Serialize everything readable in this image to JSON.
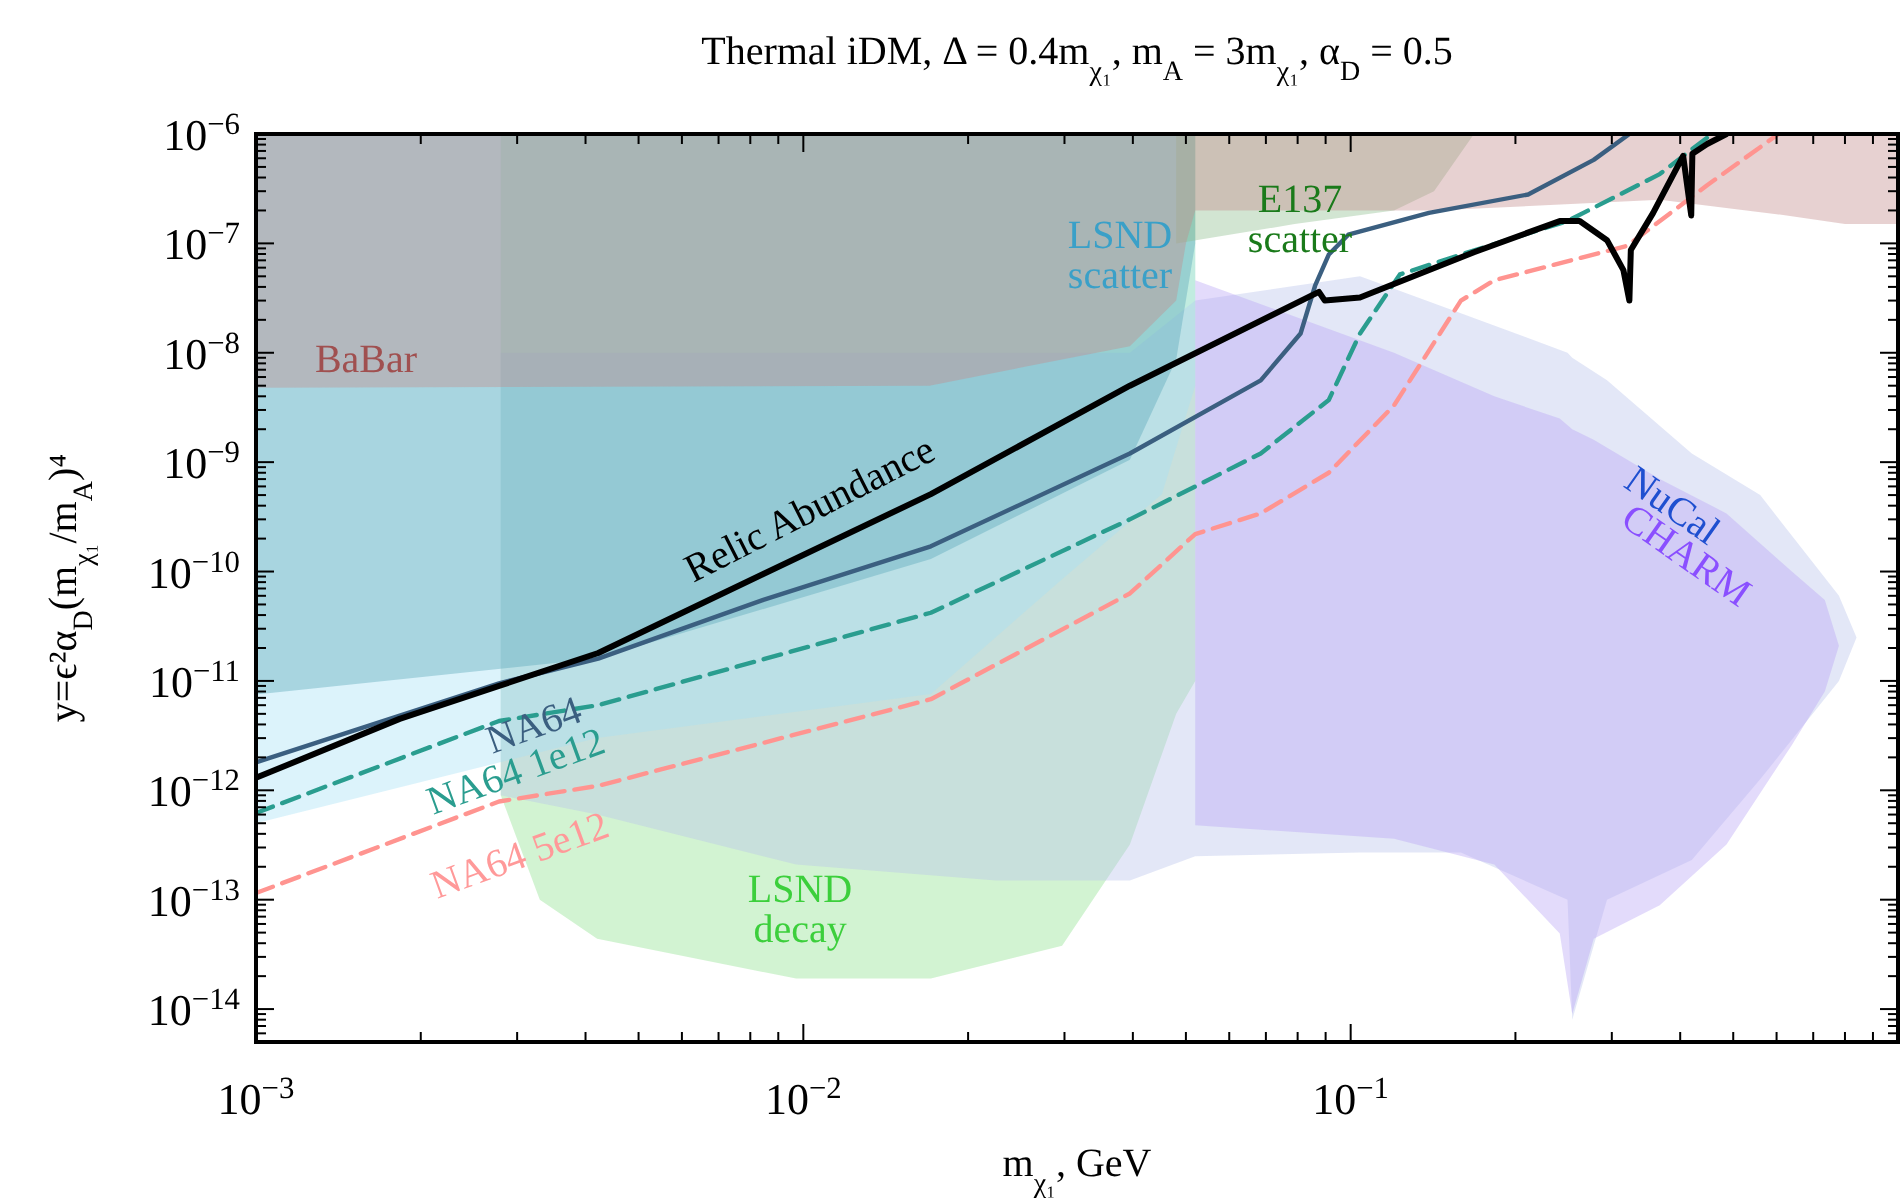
{
  "chart_data": {
    "type": "line",
    "title": "Thermal iDM, Δ = 0.4m$_{χ₁}$, m$_{A}$ = 3m$_{χ₁}$, α$_{D}$ = 0.5",
    "xlabel": "m$_{χ₁}$, GeV",
    "ylabel": "y=ϵ²α$_{D}$(m$_{χ₁}$/m$_{A}$)⁴",
    "log": "xy",
    "xlim": [
      0.001,
      1
    ],
    "ylim": [
      5e-15,
      1e-06
    ],
    "xticks": [
      {
        "value": 0.001,
        "label": "10$^{−3}$"
      },
      {
        "value": 0.01,
        "label": "10$^{−2}$"
      },
      {
        "value": 0.1,
        "label": "10$^{−1}$"
      },
      {
        "value": 0.002,
        "label": null
      },
      {
        "value": 0.003,
        "label": null
      },
      {
        "value": 0.004,
        "label": null
      },
      {
        "value": 0.005,
        "label": null
      },
      {
        "value": 0.006,
        "label": null
      },
      {
        "value": 0.007,
        "label": null
      },
      {
        "value": 0.008,
        "label": null
      },
      {
        "value": 0.009,
        "label": null
      },
      {
        "value": 0.02,
        "label": null
      },
      {
        "value": 0.03,
        "label": null
      },
      {
        "value": 0.04,
        "label": null
      },
      {
        "value": 0.05,
        "label": null
      },
      {
        "value": 0.06,
        "label": null
      },
      {
        "value": 0.07,
        "label": null
      },
      {
        "value": 0.08,
        "label": null
      },
      {
        "value": 0.09,
        "label": null
      },
      {
        "value": 0.2,
        "label": null
      },
      {
        "value": 0.3,
        "label": null
      },
      {
        "value": 0.4,
        "label": null
      },
      {
        "value": 0.5,
        "label": null
      },
      {
        "value": 0.6,
        "label": null
      },
      {
        "value": 0.7,
        "label": null
      },
      {
        "value": 0.8,
        "label": null
      },
      {
        "value": 0.9,
        "label": null
      }
    ],
    "yticks": [
      {
        "value": 1e-06,
        "label": "10$^{−6}$"
      },
      {
        "value": 1e-07,
        "label": "10$^{−7}$"
      },
      {
        "value": 1e-08,
        "label": "10$^{−8}$"
      },
      {
        "value": 1e-09,
        "label": "10$^{−9}$"
      },
      {
        "value": 1e-10,
        "label": "10$^{−10}$"
      },
      {
        "value": 1e-11,
        "label": "10$^{−11}$"
      },
      {
        "value": 1e-12,
        "label": "10$^{−12}$"
      },
      {
        "value": 1e-13,
        "label": "10$^{−13}$"
      },
      {
        "value": 1e-14,
        "label": "10$^{−14}$"
      },
      {
        "value": 6e-15,
        "label": null
      },
      {
        "value": 7e-15,
        "label": null
      },
      {
        "value": 8e-15,
        "label": null
      },
      {
        "value": 9e-15,
        "label": null
      },
      {
        "value": 2e-14,
        "label": null
      },
      {
        "value": 3e-14,
        "label": null
      },
      {
        "value": 4e-14,
        "label": null
      },
      {
        "value": 5e-14,
        "label": null
      },
      {
        "value": 6e-14,
        "label": null
      },
      {
        "value": 7e-14,
        "label": null
      },
      {
        "value": 8e-14,
        "label": null
      },
      {
        "value": 9e-14,
        "label": null
      },
      {
        "value": 2e-13,
        "label": null
      },
      {
        "value": 3e-13,
        "label": null
      },
      {
        "value": 4e-13,
        "label": null
      },
      {
        "value": 5e-13,
        "label": null
      },
      {
        "value": 6e-13,
        "label": null
      },
      {
        "value": 7e-13,
        "label": null
      },
      {
        "value": 8e-13,
        "label": null
      },
      {
        "value": 9e-13,
        "label": null
      },
      {
        "value": 2e-12,
        "label": null
      },
      {
        "value": 3e-12,
        "label": null
      },
      {
        "value": 4e-12,
        "label": null
      },
      {
        "value": 5e-12,
        "label": null
      },
      {
        "value": 6e-12,
        "label": null
      },
      {
        "value": 7e-12,
        "label": null
      },
      {
        "value": 8e-12,
        "label": null
      },
      {
        "value": 9e-12,
        "label": null
      },
      {
        "value": 2e-11,
        "label": null
      },
      {
        "value": 3e-11,
        "label": null
      },
      {
        "value": 4e-11,
        "label": null
      },
      {
        "value": 5e-11,
        "label": null
      },
      {
        "value": 6e-11,
        "label": null
      },
      {
        "value": 7e-11,
        "label": null
      },
      {
        "value": 8e-11,
        "label": null
      },
      {
        "value": 9e-11,
        "label": null
      },
      {
        "value": 2e-10,
        "label": null
      },
      {
        "value": 3e-10,
        "label": null
      },
      {
        "value": 4e-10,
        "label": null
      },
      {
        "value": 5e-10,
        "label": null
      },
      {
        "value": 6e-10,
        "label": null
      },
      {
        "value": 7e-10,
        "label": null
      },
      {
        "value": 8e-10,
        "label": null
      },
      {
        "value": 9e-10,
        "label": null
      },
      {
        "value": 2e-09,
        "label": null
      },
      {
        "value": 3e-09,
        "label": null
      },
      {
        "value": 4e-09,
        "label": null
      },
      {
        "value": 5e-09,
        "label": null
      },
      {
        "value": 6e-09,
        "label": null
      },
      {
        "value": 7e-09,
        "label": null
      },
      {
        "value": 8e-09,
        "label": null
      },
      {
        "value": 9e-09,
        "label": null
      },
      {
        "value": 2e-08,
        "label": null
      },
      {
        "value": 3e-08,
        "label": null
      },
      {
        "value": 4e-08,
        "label": null
      },
      {
        "value": 5e-08,
        "label": null
      },
      {
        "value": 6e-08,
        "label": null
      },
      {
        "value": 7e-08,
        "label": null
      },
      {
        "value": 8e-08,
        "label": null
      },
      {
        "value": 9e-08,
        "label": null
      },
      {
        "value": 2e-07,
        "label": null
      },
      {
        "value": 3e-07,
        "label": null
      },
      {
        "value": 4e-07,
        "label": null
      },
      {
        "value": 5e-07,
        "label": null
      },
      {
        "value": 6e-07,
        "label": null
      },
      {
        "value": 7e-07,
        "label": null
      },
      {
        "value": 8e-07,
        "label": null
      },
      {
        "value": 9e-07,
        "label": null
      }
    ],
    "series": [
      {
        "color": "#8fe08f",
        "x": [
          0.0028,
          0.0033,
          0.0042,
          0.0097,
          0.0171,
          0.0297,
          0.0395,
          0.048,
          0.052
        ],
        "values": [
          null,
          null,
          null,
          null,
          null,
          null,
          null,
          null,
          null
        ],
        "upper": [
          1e-06,
          1e-06,
          1e-06,
          1e-06,
          1e-06,
          1e-06,
          1e-06,
          1e-06,
          1e-06
        ],
        "lower": [
          9e-13,
          1e-13,
          4.4e-14,
          1.9e-14,
          1.9e-14,
          3.8e-14,
          3.2e-13,
          5e-12,
          1e-11
        ]
      },
      {
        "color": "#b8c4ea",
        "x": [
          0.0028,
          0.0042,
          0.0097,
          0.0225,
          0.0395,
          0.052,
          0.104,
          0.159,
          0.249,
          0.254,
          0.294,
          0.42,
          0.56,
          0.78,
          0.84
        ],
        "values": [
          null,
          null,
          null,
          null,
          null,
          null,
          null,
          null,
          null,
          null,
          null,
          null,
          null,
          null,
          null
        ],
        "upper": [
          1e-08,
          1e-08,
          1e-08,
          1e-08,
          1e-08,
          3e-08,
          5e-08,
          2.3e-08,
          1e-08,
          9e-09,
          5.6e-09,
          1.2e-09,
          5e-10,
          6e-11,
          2.5e-11
        ],
        "lower": [
          9e-13,
          6e-13,
          2.1e-13,
          1.5e-13,
          1.5e-13,
          2.5e-13,
          2.7e-13,
          2.7e-13,
          1e-13,
          8e-15,
          1e-13,
          2.3e-13,
          1.26e-12,
          1e-11,
          2.5e-11
        ]
      },
      {
        "color": "#b9a6f5",
        "x": [
          0.052,
          0.12,
          0.183,
          0.241,
          0.254,
          0.278,
          0.367,
          0.486,
          0.64,
          0.735,
          0.78
        ],
        "values": [
          null,
          null,
          null,
          null,
          null,
          null,
          null,
          null,
          null,
          null,
          null
        ],
        "upper": [
          4.6e-08,
          1e-08,
          4e-09,
          2.5e-09,
          2e-09,
          1.6e-09,
          7e-10,
          3.4e-10,
          1e-10,
          5.5e-11,
          2.1e-11
        ],
        "lower": [
          4.8e-13,
          3.6e-13,
          2.1e-13,
          4.9e-14,
          9e-15,
          4.4e-14,
          8.9e-14,
          3.2e-13,
          2.6e-12,
          8e-12,
          2.1e-11
        ]
      },
      {
        "color": "#a8e0f5",
        "x": [
          0.001,
          0.0042,
          0.0171,
          0.0297,
          0.0452,
          0.052
        ],
        "values": [
          null,
          null,
          null,
          null,
          null,
          null
        ],
        "upper": [
          1e-06,
          1e-06,
          1e-06,
          1e-06,
          1e-06,
          1e-06
        ],
        "lower": [
          5e-13,
          3e-12,
          7.6e-12,
          8.5e-11,
          5.1e-10,
          5e-09
        ]
      },
      {
        "color": "#5aa8b8",
        "x": [
          0.001,
          0.0042,
          0.0171,
          0.0395,
          0.048,
          0.052
        ],
        "values": [
          null,
          null,
          null,
          null,
          null,
          null
        ],
        "upper": [
          1e-06,
          1e-06,
          1e-06,
          1e-06,
          1e-06,
          1e-06
        ],
        "lower": [
          7.5e-12,
          1.6e-11,
          1.3e-10,
          1.05e-09,
          8.7e-09,
          1e-07
        ]
      },
      {
        "color": "#8fbf8f",
        "x": [
          0.048,
          0.079,
          0.12,
          0.142,
          0.168
        ],
        "values": [
          null,
          null,
          null,
          null,
          null
        ],
        "upper": [
          1e-06,
          1e-06,
          1e-06,
          1e-06,
          1e-06
        ],
        "lower": [
          1e-07,
          1.5e-07,
          2e-07,
          3e-07,
          1e-06
        ]
      },
      {
        "color": "#c48c8c",
        "x": [
          0.001,
          0.017,
          0.0395,
          0.048,
          0.05,
          0.052,
          0.142,
          0.367,
          0.6,
          0.8,
          1
        ],
        "values": [
          null,
          null,
          null,
          null,
          null,
          null,
          null,
          null,
          null,
          null,
          null
        ],
        "upper": [
          1e-06,
          1e-06,
          1e-06,
          1e-06,
          1e-06,
          1e-06,
          1e-06,
          1e-06,
          1e-06,
          1e-06,
          1e-06
        ],
        "lower": [
          4.8e-09,
          5e-09,
          1.15e-08,
          3e-08,
          1e-07,
          2e-07,
          2e-07,
          2.5e-07,
          1.85e-07,
          1.5e-07,
          1.5e-07
        ]
      },
      {
        "color": "#3b5f80",
        "line_style": "solid",
        "x": [
          0.001,
          0.00278,
          0.00422,
          0.00845,
          0.0171,
          0.0395,
          0.0685,
          0.081,
          0.0861,
          0.0912,
          0.099,
          0.139,
          0.211,
          0.278,
          0.323
        ],
        "values": [
          1.8e-12,
          9.5e-12,
          1.6e-11,
          5.5e-11,
          1.7e-10,
          1.2e-09,
          5.6e-09,
          1.5e-08,
          4.1e-08,
          7.9e-08,
          1.2e-07,
          1.9e-07,
          2.8e-07,
          5.8e-07,
          1e-06
        ]
      },
      {
        "color": "#2a9d8f",
        "line_style": "dashed",
        "x": [
          0.001,
          0.00278,
          0.00422,
          0.0171,
          0.0395,
          0.0685,
          0.0912,
          0.104,
          0.123,
          0.159,
          0.249,
          0.367,
          0.457
        ],
        "values": [
          6.2e-13,
          4.3e-12,
          6e-12,
          4.2e-11,
          3e-10,
          1.2e-09,
          3.7e-09,
          1.5e-08,
          5.2e-08,
          7.9e-08,
          1.6e-07,
          4.3e-07,
          1e-06
        ]
      },
      {
        "color": "#ff9490",
        "line_style": "dashed",
        "x": [
          0.001,
          0.00278,
          0.00422,
          0.0171,
          0.0395,
          0.052,
          0.0685,
          0.0912,
          0.12,
          0.159,
          0.183,
          0.32,
          0.448,
          0.605
        ],
        "values": [
          1.15e-13,
          7.9e-13,
          1.1e-12,
          6.8e-12,
          6.3e-11,
          2.2e-10,
          3.4e-10,
          8e-10,
          3.3e-09,
          3e-08,
          4.6e-08,
          9.5e-08,
          3.4e-07,
          1e-06
        ]
      },
      {
        "color": "#000000",
        "line_style": "solid",
        "x": [
          0.001,
          0.00183,
          0.00278,
          0.00422,
          0.00845,
          0.0171,
          0.0395,
          0.0875,
          0.0897,
          0.104,
          0.168,
          0.241,
          0.262,
          0.294,
          0.315,
          0.323,
          0.325,
          0.357,
          0.405,
          0.419,
          0.421,
          0.448,
          0.486
        ],
        "values": [
          1.3e-12,
          4.5e-12,
          9e-12,
          1.8e-11,
          9.5e-11,
          5.1e-10,
          5e-09,
          3.6e-08,
          3e-08,
          3.2e-08,
          8.3e-08,
          1.6e-07,
          1.6e-07,
          1.07e-07,
          5.7e-08,
          3e-08,
          8.7e-08,
          1.9e-07,
          6.3e-07,
          1.8e-07,
          6.6e-07,
          8.1e-07,
          1e-06
        ]
      }
    ],
    "annotations": [
      "BaBar",
      "LSND\nscatter",
      "E137\nscatter",
      "Relic Abundance",
      "NA64",
      "NA64 1e12",
      "NA64 5e12",
      "LSND\ndecay",
      "NuCal",
      "CHARM"
    ]
  }
}
